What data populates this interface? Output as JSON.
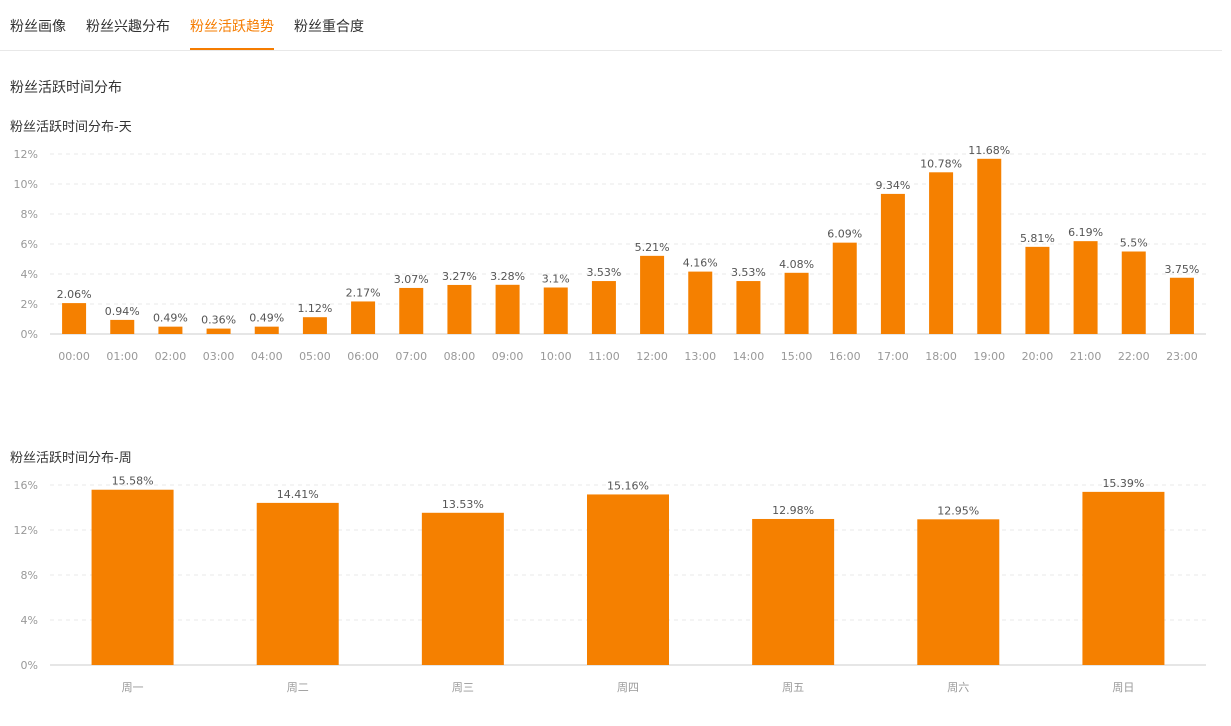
{
  "tabs": [
    {
      "label": "粉丝画像",
      "active": false
    },
    {
      "label": "粉丝兴趣分布",
      "active": false
    },
    {
      "label": "粉丝活跃趋势",
      "active": true
    },
    {
      "label": "粉丝重合度",
      "active": false
    }
  ],
  "section_title": "粉丝活跃时间分布",
  "colors": {
    "bar": "#f58000",
    "accent": "#f57c00",
    "grid": "#e8e8e8",
    "axis": "#cccccc",
    "tick_text": "#999999",
    "label_text": "#555555"
  },
  "chart_data": [
    {
      "type": "bar",
      "title": "粉丝活跃时间分布-天",
      "categories": [
        "00:00",
        "01:00",
        "02:00",
        "03:00",
        "04:00",
        "05:00",
        "06:00",
        "07:00",
        "08:00",
        "09:00",
        "10:00",
        "11:00",
        "12:00",
        "13:00",
        "14:00",
        "15:00",
        "16:00",
        "17:00",
        "18:00",
        "19:00",
        "20:00",
        "21:00",
        "22:00",
        "23:00"
      ],
      "values": [
        2.06,
        0.94,
        0.49,
        0.36,
        0.49,
        1.12,
        2.17,
        3.07,
        3.27,
        3.28,
        3.1,
        3.53,
        5.21,
        4.16,
        3.53,
        4.08,
        6.09,
        9.34,
        10.78,
        11.68,
        5.81,
        6.19,
        5.5,
        3.75
      ],
      "value_labels": [
        "2.06%",
        "0.94%",
        "0.49%",
        "0.36%",
        "0.49%",
        "1.12%",
        "2.17%",
        "3.07%",
        "3.27%",
        "3.28%",
        "3.1%",
        "3.53%",
        "5.21%",
        "4.16%",
        "3.53%",
        "4.08%",
        "6.09%",
        "9.34%",
        "10.78%",
        "11.68%",
        "5.81%",
        "6.19%",
        "5.5%",
        "3.75%"
      ],
      "yticks": [
        "0%",
        "2%",
        "4%",
        "6%",
        "8%",
        "10%",
        "12%"
      ],
      "ylim": [
        0,
        12
      ],
      "xlabel": "",
      "ylabel": ""
    },
    {
      "type": "bar",
      "title": "粉丝活跃时间分布-周",
      "categories": [
        "周一",
        "周二",
        "周三",
        "周四",
        "周五",
        "周六",
        "周日"
      ],
      "values": [
        15.58,
        14.41,
        13.53,
        15.16,
        12.98,
        12.95,
        15.39
      ],
      "value_labels": [
        "15.58%",
        "14.41%",
        "13.53%",
        "15.16%",
        "12.98%",
        "12.95%",
        "15.39%"
      ],
      "yticks": [
        "0%",
        "4%",
        "8%",
        "12%",
        "16%"
      ],
      "ylim": [
        0,
        16
      ],
      "xlabel": "",
      "ylabel": ""
    }
  ]
}
